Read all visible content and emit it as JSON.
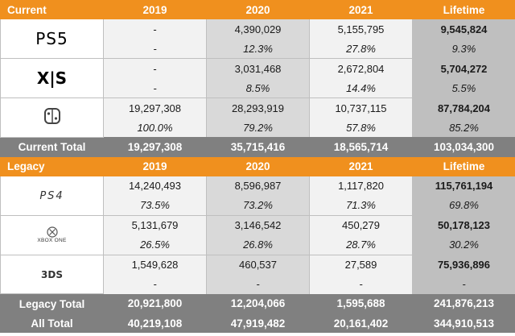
{
  "current_header": {
    "label": "Current",
    "y2019": "2019",
    "y2020": "2020",
    "y2021": "2021",
    "lifetime": "Lifetime"
  },
  "ps5": {
    "logo": "PS5",
    "units": [
      "-",
      "4,390,029",
      "5,155,795",
      "9,545,824"
    ],
    "pct": [
      "-",
      "12.3%",
      "27.8%",
      "9.3%"
    ]
  },
  "xbox_xs": {
    "logo": "X|S",
    "units": [
      "-",
      "3,031,468",
      "2,672,804",
      "5,704,272"
    ],
    "pct": [
      "-",
      "8.5%",
      "14.4%",
      "5.5%"
    ]
  },
  "switch": {
    "logo": "switch-logo-icon",
    "units": [
      "19,297,308",
      "28,293,919",
      "10,737,115",
      "87,784,204"
    ],
    "pct": [
      "100.0%",
      "79.2%",
      "57.8%",
      "85.2%"
    ]
  },
  "current_total": {
    "label": "Current Total",
    "values": [
      "19,297,308",
      "35,715,416",
      "18,565,714",
      "103,034,300"
    ]
  },
  "legacy_header": {
    "label": "Legacy",
    "y2019": "2019",
    "y2020": "2020",
    "y2021": "2021",
    "lifetime": "Lifetime"
  },
  "ps4": {
    "logo": "PS4",
    "units": [
      "14,240,493",
      "8,596,987",
      "1,117,820",
      "115,761,194"
    ],
    "pct": [
      "73.5%",
      "73.2%",
      "71.3%",
      "69.8%"
    ]
  },
  "xbox_one": {
    "logo": "XBOX ONE",
    "units": [
      "5,131,679",
      "3,146,542",
      "450,279",
      "50,178,123"
    ],
    "pct": [
      "26.5%",
      "26.8%",
      "28.7%",
      "30.2%"
    ]
  },
  "n3ds": {
    "logo": "3DS",
    "units": [
      "1,549,628",
      "460,537",
      "27,589",
      "75,936,896"
    ],
    "pct": [
      "-",
      "-",
      "-",
      "-"
    ]
  },
  "legacy_total": {
    "label": "Legacy Total",
    "values": [
      "20,921,800",
      "12,204,066",
      "1,595,688",
      "241,876,213"
    ]
  },
  "all_total": {
    "label": "All Total",
    "values": [
      "40,219,108",
      "47,919,482",
      "20,161,402",
      "344,910,513"
    ]
  },
  "colors": {
    "header": "#f0901e",
    "total": "#808080",
    "lifetime": "#bfbfbf",
    "year_shade": "#d9d9d9",
    "year_light": "#f2f2f2"
  }
}
